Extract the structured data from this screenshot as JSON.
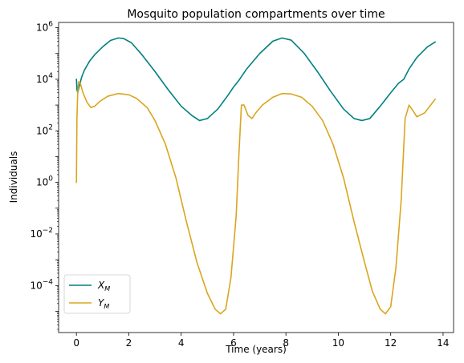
{
  "chart_data": {
    "type": "line",
    "title": "Mosquito population compartments over time",
    "xlabel": "Time (years)",
    "ylabel": "Individuals",
    "xlim": [
      -0.68,
      14.4
    ],
    "ylim": [
      1.5e-06,
      1600000.0
    ],
    "yscale": "log",
    "x_ticks": [
      0,
      2,
      4,
      6,
      8,
      10,
      12,
      14
    ],
    "x_tick_labels": [
      "0",
      "2",
      "4",
      "6",
      "8",
      "10",
      "12",
      "14"
    ],
    "y_ticks": [
      0.0001,
      0.01,
      1,
      100,
      10000,
      1000000
    ],
    "y_tick_labels": [
      {
        "base": "10",
        "exp": "−4"
      },
      {
        "base": "10",
        "exp": "−2"
      },
      {
        "base": "10",
        "exp": "0"
      },
      {
        "base": "10",
        "exp": "2"
      },
      {
        "base": "10",
        "exp": "4"
      },
      {
        "base": "10",
        "exp": "6"
      }
    ],
    "grid": false,
    "legend": "lower-left",
    "series": [
      {
        "name": "X",
        "name_sub": "M",
        "color": "#008080",
        "x": [
          0,
          0.02,
          0.05,
          0.1,
          0.2,
          0.3,
          0.5,
          0.7,
          1.0,
          1.3,
          1.6,
          1.8,
          2.1,
          2.5,
          3.0,
          3.5,
          4.0,
          4.4,
          4.7,
          5.0,
          5.4,
          5.8,
          6.0,
          6.2,
          6.5,
          7.0,
          7.5,
          7.85,
          8.2,
          8.7,
          9.2,
          9.7,
          10.2,
          10.6,
          10.9,
          11.2,
          11.6,
          12.0,
          12.3,
          12.5,
          12.7,
          13.0,
          13.4,
          13.7
        ],
        "y": [
          10000,
          4000,
          3000,
          5000,
          12000,
          22000,
          50000,
          90000,
          180000,
          320000,
          400000,
          380000,
          260000,
          90000,
          20000,
          4000,
          900,
          400,
          250,
          300,
          700,
          2500,
          5000,
          9000,
          25000,
          100000,
          300000,
          400000,
          330000,
          100000,
          20000,
          3500,
          700,
          300,
          250,
          300,
          900,
          3000,
          7000,
          10000,
          25000,
          70000,
          180000,
          280000
        ]
      },
      {
        "name": "Y",
        "name_sub": "M",
        "color": "#DAA520",
        "x": [
          0,
          0.02,
          0.05,
          0.08,
          0.15,
          0.25,
          0.4,
          0.55,
          0.7,
          0.9,
          1.2,
          1.6,
          2.0,
          2.3,
          2.7,
          3.0,
          3.4,
          3.8,
          4.2,
          4.6,
          5.0,
          5.3,
          5.5,
          5.7,
          5.9,
          6.1,
          6.2,
          6.3,
          6.4,
          6.55,
          6.7,
          6.85,
          7.1,
          7.5,
          7.85,
          8.2,
          8.6,
          9.0,
          9.4,
          9.8,
          10.2,
          10.6,
          11.0,
          11.3,
          11.6,
          11.8,
          12.0,
          12.2,
          12.4,
          12.55,
          12.7,
          12.85,
          13.0,
          13.3,
          13.7
        ],
        "y": [
          1,
          300,
          3000,
          8000,
          7000,
          3000,
          1300,
          800,
          900,
          1400,
          2200,
          2800,
          2500,
          1800,
          800,
          250,
          30,
          1.5,
          0.03,
          0.0008,
          5e-05,
          1.2e-05,
          8e-06,
          1.2e-05,
          0.0002,
          0.05,
          10,
          1000,
          1000,
          400,
          300,
          500,
          1000,
          2000,
          2800,
          2700,
          2000,
          900,
          250,
          30,
          1.5,
          0.03,
          0.0008,
          6e-05,
          1.2e-05,
          8e-06,
          1.5e-05,
          0.0005,
          0.2,
          300,
          1000,
          600,
          350,
          500,
          1700
        ]
      }
    ]
  }
}
